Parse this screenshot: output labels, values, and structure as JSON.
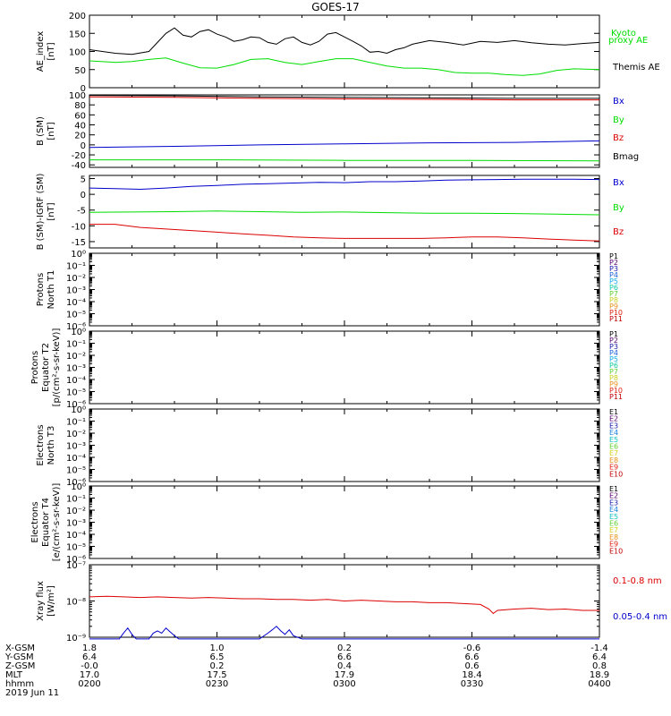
{
  "title": "GOES-17",
  "chart_data": [
    {
      "type": "line",
      "ylabel": [
        "AE_index",
        "[nT]"
      ],
      "ylim": [
        0,
        200
      ],
      "yticks": [
        {
          "v": 0,
          "label": "0"
        },
        {
          "v": 50,
          "label": "50"
        },
        {
          "v": 100,
          "label": "100"
        },
        {
          "v": 150,
          "label": "150"
        },
        {
          "v": 200,
          "label": "200"
        }
      ],
      "series": [
        {
          "name": "Kyoto proxy AE",
          "color": "#00dd00",
          "x": [
            0,
            3,
            5,
            7,
            9,
            11,
            13,
            15,
            17,
            19,
            21,
            23,
            25,
            27,
            29,
            31,
            33,
            35,
            37,
            39,
            41,
            43,
            45,
            47,
            49,
            51,
            53,
            55,
            57,
            60
          ],
          "y": [
            74,
            70,
            72,
            78,
            82,
            68,
            55,
            54,
            64,
            78,
            80,
            70,
            64,
            72,
            80,
            80,
            70,
            60,
            54,
            54,
            50,
            42,
            40,
            40,
            36,
            34,
            38,
            48,
            52,
            50
          ]
        },
        {
          "name": "Themis AE",
          "color": "#000000",
          "x": [
            0,
            3,
            5,
            7,
            8,
            9,
            10,
            11,
            12,
            13,
            14,
            15,
            16,
            17,
            18,
            19,
            20,
            21,
            22,
            23,
            24,
            25,
            26,
            27,
            28,
            29,
            30,
            31,
            32,
            33,
            34,
            35,
            36,
            37,
            38,
            40,
            42,
            44,
            46,
            48,
            50,
            52,
            54,
            56,
            58,
            60
          ],
          "y": [
            105,
            95,
            92,
            100,
            125,
            150,
            165,
            145,
            140,
            155,
            160,
            148,
            140,
            128,
            132,
            140,
            138,
            125,
            120,
            135,
            140,
            125,
            118,
            128,
            148,
            152,
            140,
            128,
            115,
            98,
            100,
            95,
            105,
            110,
            120,
            130,
            125,
            118,
            128,
            125,
            130,
            124,
            120,
            118,
            122,
            125
          ]
        }
      ]
    },
    {
      "type": "line",
      "ylabel": [
        "B (SM)",
        "[nT]"
      ],
      "ylim": [
        -45,
        100
      ],
      "yticks": [
        {
          "v": -40,
          "label": "-40"
        },
        {
          "v": -20,
          "label": "-20"
        },
        {
          "v": 0,
          "label": "0"
        },
        {
          "v": 20,
          "label": "20"
        },
        {
          "v": 40,
          "label": "40"
        },
        {
          "v": 60,
          "label": "60"
        },
        {
          "v": 80,
          "label": "80"
        },
        {
          "v": 100,
          "label": "100"
        }
      ],
      "series": [
        {
          "name": "Bx",
          "color": "#0000cc",
          "x": [
            0,
            10,
            20,
            30,
            40,
            50,
            60
          ],
          "y": [
            -5,
            -3,
            0,
            2,
            4,
            5,
            8
          ]
        },
        {
          "name": "By",
          "color": "#00dd00",
          "x": [
            0,
            15,
            30,
            45,
            60
          ],
          "y": [
            -30,
            -30,
            -31,
            -31,
            -32
          ]
        },
        {
          "name": "Bz",
          "color": "#dd0000",
          "x": [
            0,
            10,
            20,
            30,
            40,
            50,
            60
          ],
          "y": [
            96,
            95,
            93,
            92,
            91,
            90,
            90
          ]
        },
        {
          "name": "Bmag",
          "color": "#000000",
          "x": [
            0,
            10,
            20,
            30,
            40,
            50,
            60
          ],
          "y": [
            99,
            98,
            96,
            95,
            94,
            93,
            93
          ]
        }
      ]
    },
    {
      "type": "line",
      "ylabel": [
        "B (SM)-IGRF (SM)",
        "[nT]"
      ],
      "ylim": [
        -17,
        6
      ],
      "yticks": [
        {
          "v": -15,
          "label": "-15"
        },
        {
          "v": -10,
          "label": "-10"
        },
        {
          "v": -5,
          "label": "-5"
        },
        {
          "v": 0,
          "label": "0"
        },
        {
          "v": 5,
          "label": "5"
        }
      ],
      "series": [
        {
          "name": "Bx",
          "color": "#0000cc",
          "x": [
            0,
            3,
            6,
            9,
            12,
            15,
            18,
            21,
            24,
            27,
            30,
            33,
            36,
            39,
            42,
            45,
            48,
            51,
            54,
            57,
            60
          ],
          "y": [
            2,
            1.8,
            1.6,
            2,
            2.5,
            2.8,
            3.2,
            3.4,
            3.6,
            3.8,
            3.7,
            4,
            4,
            4.2,
            4.5,
            4.6,
            4.7,
            4.8,
            4.8,
            4.8,
            4.7
          ]
        },
        {
          "name": "By",
          "color": "#00dd00",
          "x": [
            0,
            5,
            10,
            15,
            20,
            25,
            30,
            35,
            40,
            45,
            50,
            55,
            60
          ],
          "y": [
            -5.7,
            -5.6,
            -5.5,
            -5.3,
            -5.5,
            -5.7,
            -5.6,
            -5.8,
            -6,
            -6,
            -6.1,
            -6.3,
            -6.5
          ]
        },
        {
          "name": "Bz",
          "color": "#dd0000",
          "x": [
            0,
            3,
            6,
            9,
            12,
            15,
            18,
            21,
            24,
            27,
            30,
            33,
            36,
            39,
            42,
            45,
            48,
            51,
            54,
            57,
            60
          ],
          "y": [
            -9.5,
            -9.5,
            -10.5,
            -11,
            -11.5,
            -12,
            -12.5,
            -13,
            -13.5,
            -13.8,
            -14,
            -14,
            -14,
            -14,
            -13.8,
            -13.5,
            -13.5,
            -13.8,
            -14.2,
            -14.5,
            -14.8
          ]
        }
      ]
    },
    {
      "type": "line",
      "ylabel": [
        "Protons",
        "North T1"
      ],
      "ylim_log": [
        -6,
        0
      ],
      "yticks": [
        {
          "e": 0,
          "label": "10⁰"
        },
        {
          "e": -1,
          "label": "10⁻¹"
        },
        {
          "e": -2,
          "label": "10⁻²"
        },
        {
          "e": -3,
          "label": "10⁻³"
        },
        {
          "e": -4,
          "label": "10⁻⁴"
        },
        {
          "e": -5,
          "label": "10⁻⁵"
        },
        {
          "e": -6,
          "label": "10⁻⁶"
        }
      ],
      "legend": [
        {
          "name": "P1",
          "color": "#000000"
        },
        {
          "name": "P2",
          "color": "#5a0070"
        },
        {
          "name": "P3",
          "color": "#1a1aaa"
        },
        {
          "name": "P4",
          "color": "#1a60dd"
        },
        {
          "name": "P5",
          "color": "#10a8e8"
        },
        {
          "name": "P6",
          "color": "#10c8a0"
        },
        {
          "name": "P7",
          "color": "#60d030"
        },
        {
          "name": "P8",
          "color": "#c8d020"
        },
        {
          "name": "P9",
          "color": "#e89018"
        },
        {
          "name": "P10",
          "color": "#e02010"
        },
        {
          "name": "P11",
          "color": "#c00000"
        }
      ]
    },
    {
      "type": "line",
      "ylabel": [
        "Protons",
        "Equator T2",
        "[p/(cm²-s-sr-keV)]"
      ],
      "ylim_log": [
        -6,
        0
      ],
      "yticks": [
        {
          "e": 0,
          "label": "10⁰"
        },
        {
          "e": -1,
          "label": "10⁻¹"
        },
        {
          "e": -2,
          "label": "10⁻²"
        },
        {
          "e": -3,
          "label": "10⁻³"
        },
        {
          "e": -4,
          "label": "10⁻⁴"
        },
        {
          "e": -5,
          "label": "10⁻⁵"
        },
        {
          "e": -6,
          "label": "10⁻⁶"
        }
      ],
      "legend": [
        {
          "name": "P1",
          "color": "#000000"
        },
        {
          "name": "P2",
          "color": "#5a0070"
        },
        {
          "name": "P3",
          "color": "#1a1aaa"
        },
        {
          "name": "P4",
          "color": "#1a60dd"
        },
        {
          "name": "P5",
          "color": "#10a8e8"
        },
        {
          "name": "P6",
          "color": "#10c8a0"
        },
        {
          "name": "P7",
          "color": "#60d030"
        },
        {
          "name": "P8",
          "color": "#c8d020"
        },
        {
          "name": "P9",
          "color": "#e89018"
        },
        {
          "name": "P10",
          "color": "#e02010"
        },
        {
          "name": "P11",
          "color": "#c00000"
        }
      ]
    },
    {
      "type": "line",
      "ylabel": [
        "Electrons",
        "North T3"
      ],
      "ylim_log": [
        -6,
        0
      ],
      "yticks": [
        {
          "e": 0,
          "label": "10⁰"
        },
        {
          "e": -1,
          "label": "10⁻¹"
        },
        {
          "e": -2,
          "label": "10⁻²"
        },
        {
          "e": -3,
          "label": "10⁻³"
        },
        {
          "e": -4,
          "label": "10⁻⁴"
        },
        {
          "e": -5,
          "label": "10⁻⁵"
        },
        {
          "e": -6,
          "label": "10⁻⁶"
        }
      ],
      "legend": [
        {
          "name": "E1",
          "color": "#000000"
        },
        {
          "name": "E2",
          "color": "#5a0070"
        },
        {
          "name": "E3",
          "color": "#1a1aaa"
        },
        {
          "name": "E4",
          "color": "#1a80e0"
        },
        {
          "name": "E5",
          "color": "#10c0c0"
        },
        {
          "name": "E6",
          "color": "#60d030"
        },
        {
          "name": "E7",
          "color": "#d0d020"
        },
        {
          "name": "E8",
          "color": "#e89018"
        },
        {
          "name": "E9",
          "color": "#e02010"
        },
        {
          "name": "E10",
          "color": "#c00000"
        }
      ]
    },
    {
      "type": "line",
      "ylabel": [
        "Electrons",
        "Equator T4",
        "[e/(cm²-s-sr-keV)]"
      ],
      "ylim_log": [
        -6,
        0
      ],
      "yticks": [
        {
          "e": 0,
          "label": "10⁰"
        },
        {
          "e": -1,
          "label": "10⁻¹"
        },
        {
          "e": -2,
          "label": "10⁻²"
        },
        {
          "e": -3,
          "label": "10⁻³"
        },
        {
          "e": -4,
          "label": "10⁻⁴"
        },
        {
          "e": -5,
          "label": "10⁻⁵"
        },
        {
          "e": -6,
          "label": "10⁻⁶"
        }
      ],
      "legend": [
        {
          "name": "E1",
          "color": "#000000"
        },
        {
          "name": "E2",
          "color": "#5a0070"
        },
        {
          "name": "E3",
          "color": "#1a1aaa"
        },
        {
          "name": "E4",
          "color": "#1a80e0"
        },
        {
          "name": "E5",
          "color": "#10c0c0"
        },
        {
          "name": "E6",
          "color": "#60d030"
        },
        {
          "name": "E7",
          "color": "#d0d020"
        },
        {
          "name": "E8",
          "color": "#e89018"
        },
        {
          "name": "E9",
          "color": "#e02010"
        },
        {
          "name": "E10",
          "color": "#c00000"
        }
      ]
    },
    {
      "type": "line",
      "ylabel": [
        "Xray flux",
        "[W/m²]"
      ],
      "ylim_log": [
        -9,
        -7
      ],
      "yticks": [
        {
          "e": -7,
          "label": "10⁻⁷"
        },
        {
          "e": -8,
          "label": "10⁻⁸"
        },
        {
          "e": -9,
          "label": "10⁻⁹"
        }
      ],
      "series": [
        {
          "name": "0.1-0.8 nm",
          "color": "#dd0000",
          "x": [
            0,
            2,
            4,
            6,
            8,
            10,
            12,
            14,
            16,
            18,
            20,
            22,
            24,
            26,
            28,
            30,
            32,
            34,
            36,
            38,
            40,
            42,
            44,
            46,
            47,
            47.5,
            48,
            50,
            52,
            54,
            56,
            58,
            60
          ],
          "y": [
            1.3e-08,
            1.35e-08,
            1.3e-08,
            1.25e-08,
            1.3e-08,
            1.25e-08,
            1.2e-08,
            1.25e-08,
            1.2e-08,
            1.15e-08,
            1.15e-08,
            1.1e-08,
            1.1e-08,
            1.05e-08,
            1.1e-08,
            1e-08,
            1.05e-08,
            1e-08,
            9.5e-09,
            9.5e-09,
            9e-09,
            9e-09,
            8.5e-09,
            8e-09,
            6e-09,
            4.5e-09,
            5.5e-09,
            6e-09,
            6.3e-09,
            5.8e-09,
            6e-09,
            5.5e-09,
            5.5e-09
          ]
        },
        {
          "name": "0.05-0.4 nm",
          "color": "#0000cc",
          "x": [
            0,
            3.5,
            4,
            4.5,
            5,
            5.5,
            6,
            7,
            7.5,
            8,
            8.5,
            9,
            9.5,
            10,
            10.5,
            11,
            20,
            21,
            21.5,
            22,
            22.5,
            23,
            23.5,
            24,
            25,
            26,
            60
          ],
          "y": [
            9e-10,
            9e-10,
            1.3e-09,
            1.8e-09,
            1.2e-09,
            9e-10,
            9e-10,
            9e-10,
            1.3e-09,
            1.5e-09,
            1.3e-09,
            1.8e-09,
            1.4e-09,
            1.1e-09,
            9e-10,
            9e-10,
            9e-10,
            1.3e-09,
            1.6e-09,
            2e-09,
            1.5e-09,
            1.2e-09,
            1.6e-09,
            1.1e-09,
            9e-10,
            9e-10,
            9e-10
          ]
        }
      ]
    }
  ],
  "ephemeris": {
    "labels": [
      "X-GSM",
      "Y-GSM",
      "Z-GSM",
      "MLT",
      "hhmm",
      "2019 Jun 11"
    ],
    "columns": [
      {
        "x": 0,
        "values": [
          "1.8",
          "6.4",
          "-0.0",
          "17.0",
          "0200"
        ]
      },
      {
        "x": 15,
        "values": [
          "1.0",
          "6.5",
          "0.2",
          "17.5",
          "0230"
        ]
      },
      {
        "x": 30,
        "values": [
          "0.2",
          "6.6",
          "0.4",
          "17.9",
          "0300"
        ]
      },
      {
        "x": 45,
        "values": [
          "-0.6",
          "6.6",
          "0.6",
          "18.4",
          "0330"
        ]
      },
      {
        "x": 60,
        "values": [
          "-1.4",
          "6.4",
          "0.8",
          "18.9",
          "0400"
        ]
      }
    ]
  }
}
